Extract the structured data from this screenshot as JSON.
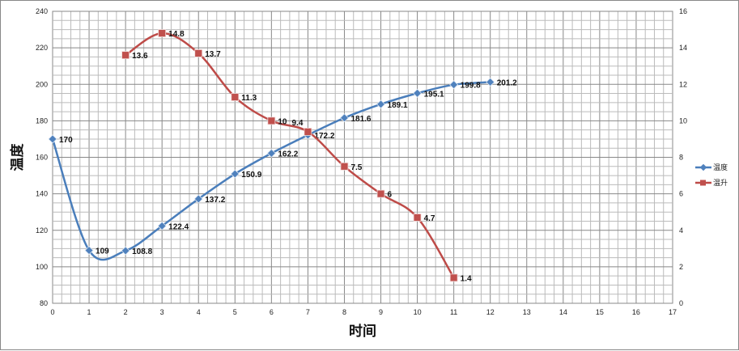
{
  "chart_data": {
    "type": "line",
    "title": "",
    "xlabel": "时间",
    "ylabel": "温度",
    "xlim": [
      0,
      17
    ],
    "ylim": [
      80,
      240
    ],
    "y2lim": [
      0,
      16
    ],
    "x_ticks": [
      0,
      1,
      2,
      3,
      4,
      5,
      6,
      7,
      8,
      9,
      10,
      11,
      12,
      13,
      14,
      15,
      16,
      17
    ],
    "y_ticks": [
      80,
      100,
      120,
      140,
      160,
      180,
      200,
      220,
      240
    ],
    "y2_ticks": [
      0,
      2,
      4,
      6,
      8,
      10,
      12,
      14,
      16
    ],
    "grid": true,
    "legend_position": "right",
    "series": [
      {
        "name": "温度",
        "axis": "left",
        "color": "#4a7ebb",
        "marker_color": "#4f81bd",
        "x": [
          0,
          1,
          2,
          3,
          4,
          5,
          6,
          7,
          8,
          9,
          10,
          11,
          12
        ],
        "values": [
          170,
          109,
          108.8,
          122.4,
          137.2,
          150.9,
          162.2,
          172.2,
          181.6,
          189.1,
          195.1,
          199.8,
          201.2
        ]
      },
      {
        "name": "温升",
        "axis": "right",
        "color": "#be4b48",
        "marker_color": "#c0504d",
        "x": [
          2,
          3,
          4,
          5,
          6,
          7,
          8,
          9,
          10,
          11
        ],
        "values": [
          13.6,
          14.8,
          13.7,
          11.3,
          10,
          9.4,
          7.5,
          6,
          4.7,
          1.4
        ]
      }
    ]
  }
}
